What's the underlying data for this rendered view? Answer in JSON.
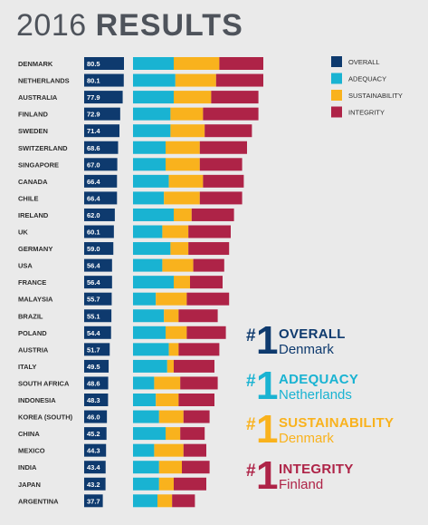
{
  "header": {
    "year": "2016",
    "word": "RESULTS"
  },
  "colors": {
    "overall": "#0e3a6e",
    "adequacy": "#19b3d2",
    "sustainability": "#f9b21d",
    "integrity": "#ae2347",
    "background": "#eaeaea"
  },
  "legend": [
    {
      "key": "overall",
      "label": "OVERALL"
    },
    {
      "key": "adequacy",
      "label": "ADEQUACY"
    },
    {
      "key": "sustainability",
      "label": "SUSTAINABILITY"
    },
    {
      "key": "integrity",
      "label": "INTEGRITY"
    }
  ],
  "chart_data": {
    "type": "bar",
    "categories": [
      "DENMARK",
      "NETHERLANDS",
      "AUSTRALIA",
      "FINLAND",
      "SWEDEN",
      "SWITZERLAND",
      "SINGAPORE",
      "CANADA",
      "CHILE",
      "IRELAND",
      "UK",
      "GERMANY",
      "USA",
      "FRANCE",
      "MALAYSIA",
      "BRAZIL",
      "POLAND",
      "AUSTRIA",
      "ITALY",
      "SOUTH AFRICA",
      "INDONESIA",
      "KOREA (SOUTH)",
      "CHINA",
      "MEXICO",
      "INDIA",
      "JAPAN",
      "ARGENTINA"
    ],
    "overall": [
      "80.5",
      "80.1",
      "77.9",
      "72.9",
      "71.4",
      "68.6",
      "67.0",
      "66.4",
      "66.4",
      "62.0",
      "60.1",
      "59.0",
      "56.4",
      "56.4",
      "55.7",
      "55.1",
      "54.4",
      "51.7",
      "49.5",
      "48.6",
      "48.3",
      "46.0",
      "45.2",
      "44.3",
      "43.4",
      "43.2",
      "37.7"
    ],
    "series": [
      {
        "name": "ADEQUACY",
        "values": [
          25,
          26,
          25,
          23,
          23,
          20,
          20,
          22,
          19,
          25,
          18,
          23,
          18,
          25,
          14,
          19,
          20,
          22,
          21,
          13,
          14,
          16,
          20,
          13,
          16,
          16,
          15
        ]
      },
      {
        "name": "SUSTAINABILITY",
        "values": [
          28,
          25,
          23,
          20,
          21,
          21,
          21,
          21,
          22,
          11,
          16,
          11,
          19,
          10,
          19,
          9,
          13,
          6,
          4,
          16,
          14,
          15,
          9,
          18,
          14,
          9,
          9
        ]
      },
      {
        "name": "INTEGRITY",
        "values": [
          27,
          29,
          29,
          34,
          29,
          29,
          26,
          25,
          26,
          26,
          26,
          25,
          19,
          20,
          26,
          24,
          24,
          25,
          25,
          23,
          22,
          16,
          15,
          14,
          17,
          20,
          14
        ]
      }
    ]
  },
  "winners": [
    {
      "hash": "#",
      "num": "1",
      "category": "OVERALL",
      "country": "Denmark",
      "color": "#0e3a6e"
    },
    {
      "hash": "#",
      "num": "1",
      "category": "ADEQUACY",
      "country": "Netherlands",
      "color": "#19b3d2"
    },
    {
      "hash": "#",
      "num": "1",
      "category": "SUSTAINABILITY",
      "country": "Denmark",
      "color": "#f9b21d"
    },
    {
      "hash": "#",
      "num": "1",
      "category": "INTEGRITY",
      "country": "Finland",
      "color": "#ae2347"
    }
  ]
}
